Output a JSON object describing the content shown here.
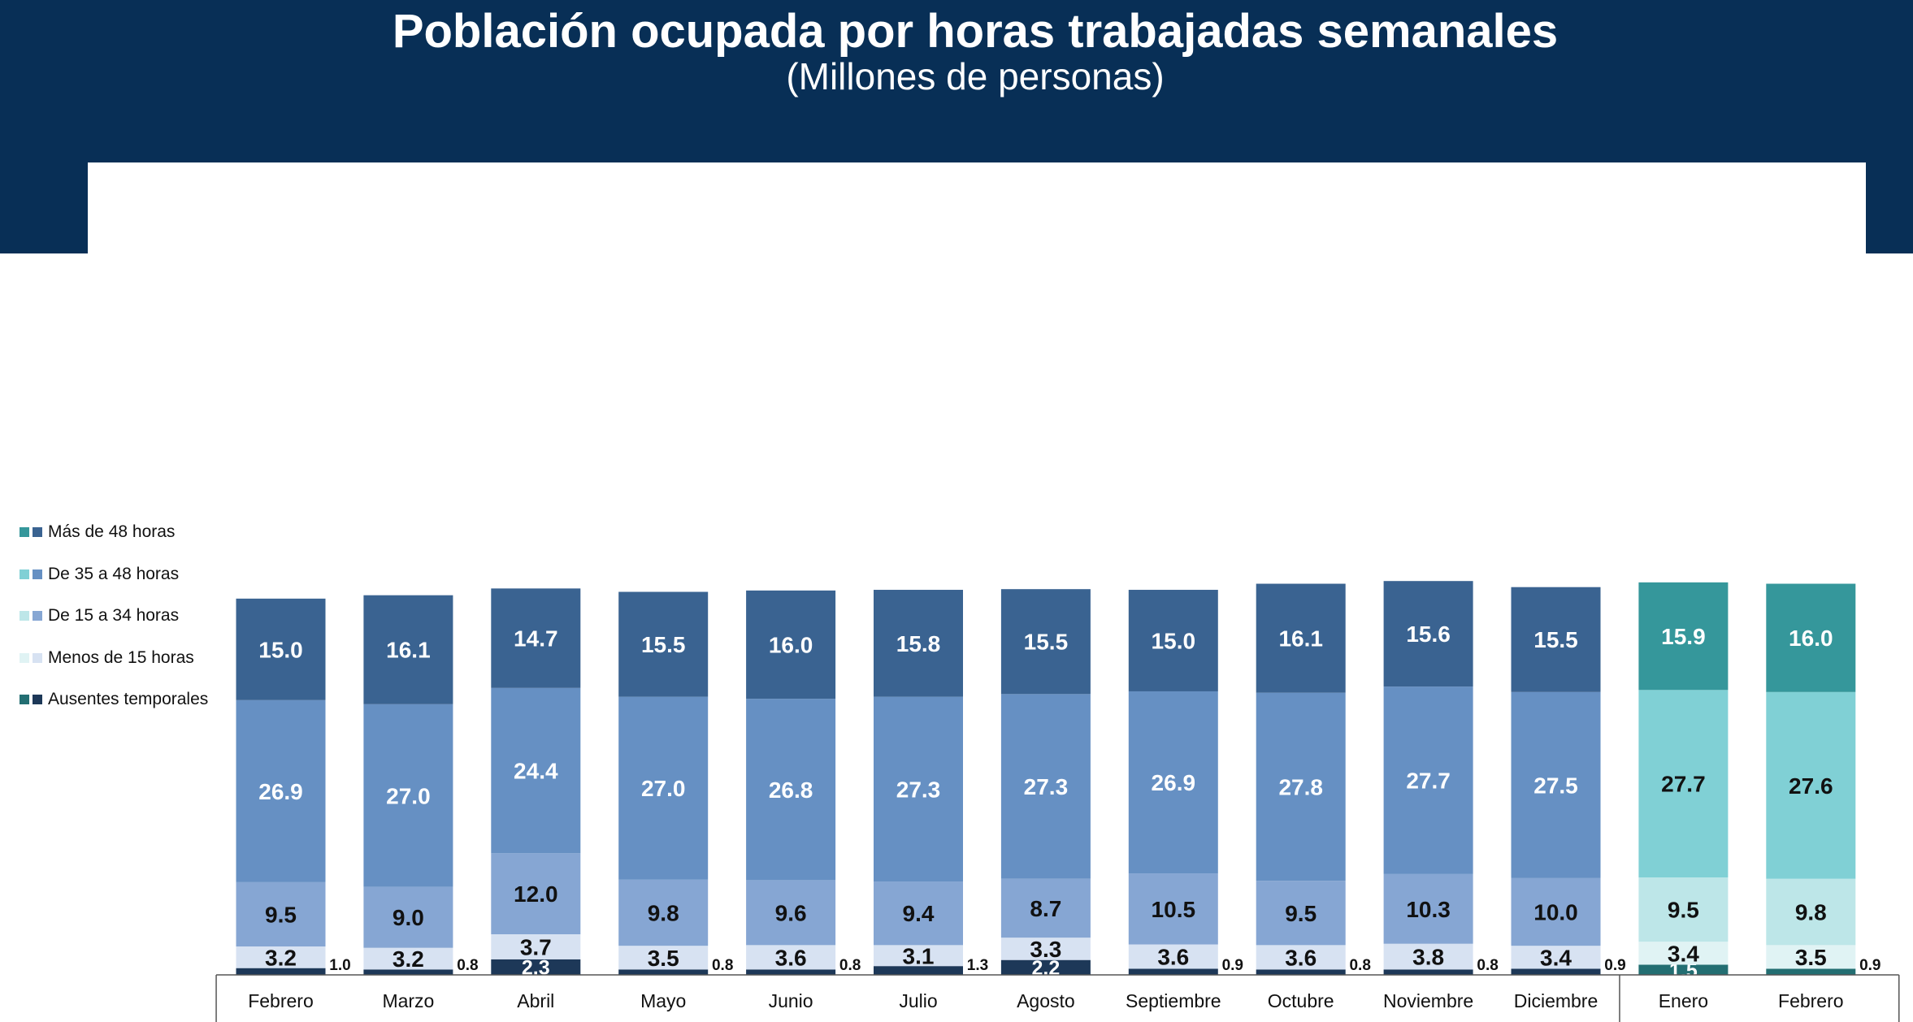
{
  "header": {
    "title": "Población ocupada por horas trabajadas semanales",
    "subtitle": "(Millones de personas)"
  },
  "legend": [
    {
      "label": "Más de 48 horas",
      "colors": [
        "#35979b",
        "#3a6391"
      ]
    },
    {
      "label": "De 35 a 48 horas",
      "colors": [
        "#80d0d5",
        "#6690c3"
      ]
    },
    {
      "label": "De 15 a 34 horas",
      "colors": [
        "#bde6e8",
        "#86a6d3"
      ]
    },
    {
      "label": "Menos de 15 horas",
      "colors": [
        "#e0f3f4",
        "#d7e2f2"
      ]
    },
    {
      "label": "Ausentes temporales",
      "colors": [
        "#236e72",
        "#1d3858"
      ]
    }
  ],
  "chart_data": {
    "type": "bar",
    "stacked": true,
    "title": "Población ocupada por horas trabajadas semanales",
    "subtitle": "(Millones de personas)",
    "unit": "Millones de personas",
    "categories": [
      "Febrero",
      "Marzo",
      "Abril",
      "Mayo",
      "Junio",
      "Julio",
      "Agosto",
      "Septiembre",
      "Octubre",
      "Noviembre",
      "Diciembre",
      "Enero",
      "Febrero"
    ],
    "year_group_break_after_index": 10,
    "series": [
      {
        "name": "Ausentes temporales",
        "values": [
          1.0,
          0.8,
          2.3,
          0.8,
          0.8,
          1.3,
          2.2,
          0.9,
          0.8,
          0.8,
          0.9,
          1.5,
          0.9
        ]
      },
      {
        "name": "Menos de 15 horas",
        "values": [
          3.2,
          3.2,
          3.7,
          3.5,
          3.6,
          3.1,
          3.3,
          3.6,
          3.6,
          3.8,
          3.4,
          3.4,
          3.5
        ]
      },
      {
        "name": "De 15 a 34 horas",
        "values": [
          9.5,
          9.0,
          12.0,
          9.8,
          9.6,
          9.4,
          8.7,
          10.5,
          9.5,
          10.3,
          10.0,
          9.5,
          9.8
        ]
      },
      {
        "name": "De 35 a 48 horas",
        "values": [
          26.9,
          27.0,
          24.4,
          27.0,
          26.8,
          27.3,
          27.3,
          26.9,
          27.8,
          27.7,
          27.5,
          27.7,
          27.6
        ]
      },
      {
        "name": "Más de 48 horas",
        "values": [
          15.0,
          16.1,
          14.7,
          15.5,
          16.0,
          15.8,
          15.5,
          15.0,
          16.1,
          15.6,
          15.5,
          15.9,
          16.0
        ]
      }
    ],
    "colors_prior_period": [
      "#1d3858",
      "#d7e2f2",
      "#86a6d3",
      "#6690c3",
      "#3a6391"
    ],
    "colors_current_period": [
      "#236e72",
      "#e0f3f4",
      "#bde6e8",
      "#80d0d5",
      "#35979b"
    ],
    "label_colors_prior_period": [
      "#ffffff",
      "#111111",
      "#111111",
      "#ffffff",
      "#ffffff"
    ],
    "label_colors_current_period": [
      "#ffffff",
      "#111111",
      "#111111",
      "#111111",
      "#ffffff"
    ],
    "value_labels_outside_for_series": "Ausentes temporales",
    "value_labels_outside_exceptions": [
      2,
      6,
      11
    ],
    "xlabel": "",
    "ylabel": ""
  }
}
